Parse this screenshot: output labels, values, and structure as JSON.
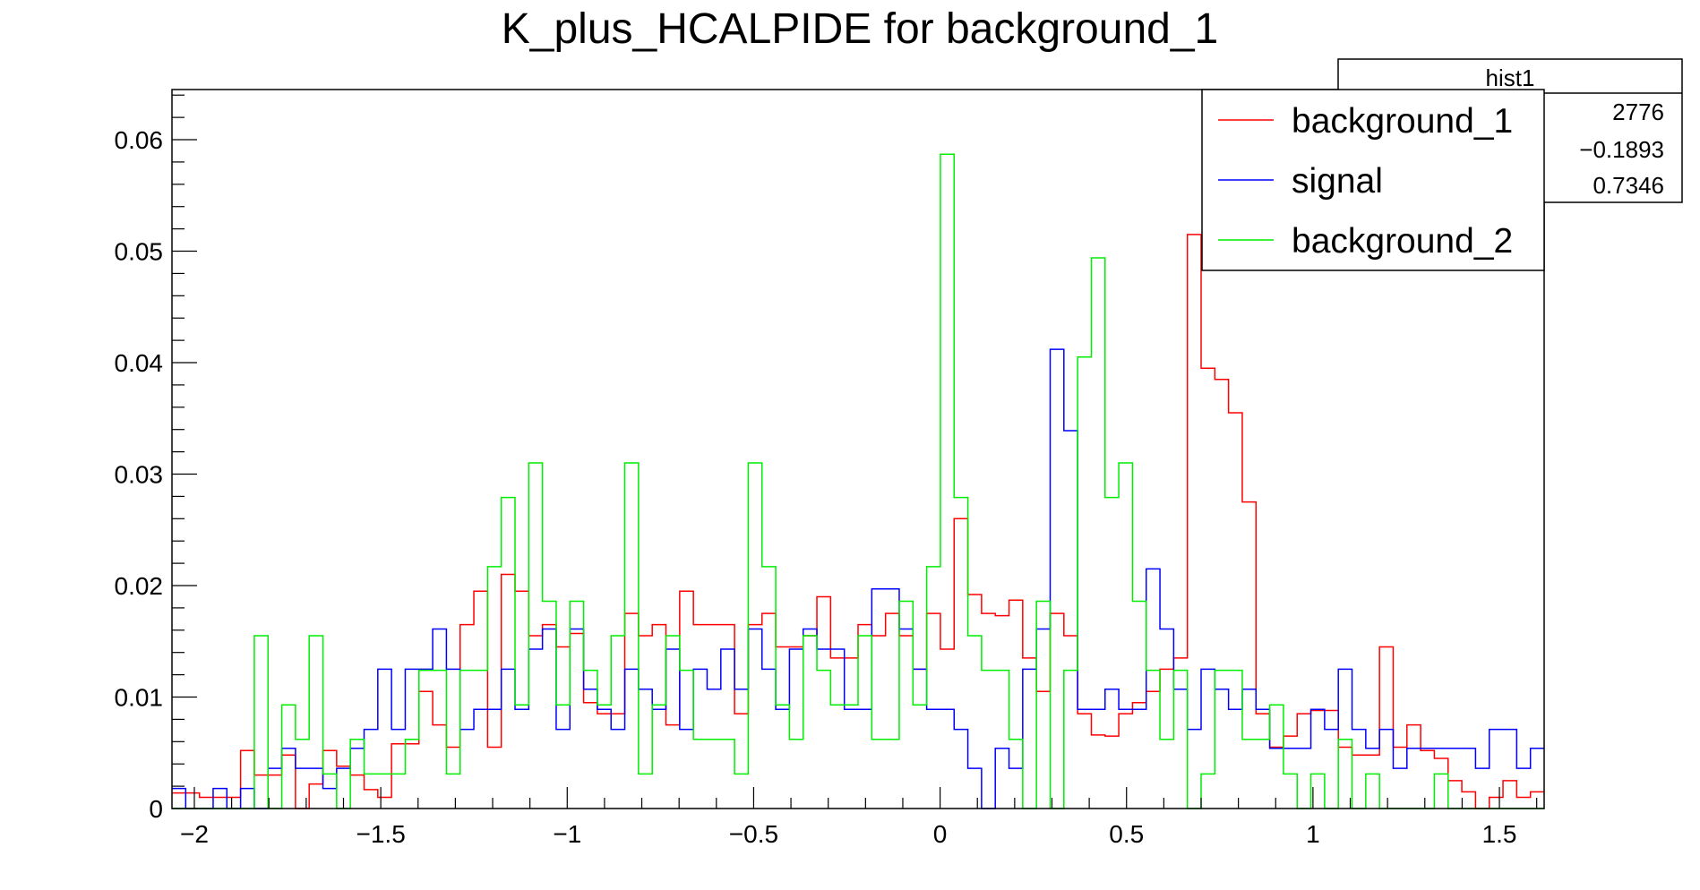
{
  "chart_data": {
    "type": "histogram-step",
    "title": "K_plus_HCALPIDE for background_1",
    "xlabel": "",
    "ylabel": "",
    "xlim": [
      -2.06,
      1.62
    ],
    "ylim": [
      0,
      0.0645
    ],
    "x_ticks": [
      -2,
      -1.5,
      -1,
      -0.5,
      0,
      0.5,
      1,
      1.5
    ],
    "x_tick_labels": [
      "−2",
      "−1.5",
      "−1",
      "−0.5",
      "0",
      "0.5",
      "1",
      "1.5"
    ],
    "y_ticks": [
      0,
      0.01,
      0.02,
      0.03,
      0.04,
      0.05,
      0.06
    ],
    "y_tick_labels": [
      "0",
      "0.01",
      "0.02",
      "0.03",
      "0.04",
      "0.05",
      "0.06"
    ],
    "bins": {
      "start": -2.06,
      "width": 0.0368,
      "count": 100
    },
    "series": [
      {
        "name": "background_1",
        "color": "#ff0000",
        "values": [
          0.0014,
          0.0014,
          0.001,
          0.001,
          0.001,
          0.0052,
          0.003,
          0.003,
          0.0048,
          0.0,
          0.0022,
          0.0052,
          0.0038,
          0.003,
          0.0017,
          0.001,
          0.0058,
          0.0058,
          0.0105,
          0.0075,
          0.0055,
          0.0165,
          0.0195,
          0.0055,
          0.021,
          0.0195,
          0.0155,
          0.0165,
          0.0145,
          0.0157,
          0.0095,
          0.0085,
          0.0085,
          0.0175,
          0.0155,
          0.0165,
          0.0075,
          0.0195,
          0.0165,
          0.0165,
          0.0165,
          0.0085,
          0.0165,
          0.0175,
          0.0145,
          0.0145,
          0.0155,
          0.019,
          0.0135,
          0.0135,
          0.0165,
          0.0155,
          0.0175,
          0.0155,
          0.0125,
          0.0175,
          0.0143,
          0.026,
          0.0192,
          0.0175,
          0.0173,
          0.0187,
          0.0135,
          0.0105,
          0.0175,
          0.0155,
          0.0085,
          0.0066,
          0.0065,
          0.0085,
          0.0095,
          0.0105,
          0.0125,
          0.0135,
          0.0515,
          0.0395,
          0.0385,
          0.0355,
          0.0275,
          0.0085,
          0.0055,
          0.0065,
          0.0085,
          0.0088,
          0.0088,
          0.0055,
          0.0048,
          0.0048,
          0.0145,
          0.0055,
          0.0075,
          0.0052,
          0.0045,
          0.0025,
          0.0015,
          0.0,
          0.001,
          0.0025,
          0.001,
          0.0015
        ]
      },
      {
        "name": "signal",
        "color": "#0000ff",
        "values": [
          0.0018,
          0.0,
          0.0,
          0.0018,
          0.0,
          0.0018,
          0.0,
          0.0036,
          0.0054,
          0.0036,
          0.0036,
          0.0018,
          0.0036,
          0.0054,
          0.0071,
          0.0125,
          0.0071,
          0.0125,
          0.0125,
          0.0161,
          0.0125,
          0.0071,
          0.0089,
          0.0089,
          0.0125,
          0.0089,
          0.0143,
          0.0161,
          0.0071,
          0.0161,
          0.0107,
          0.0089,
          0.0071,
          0.0125,
          0.0107,
          0.0089,
          0.0143,
          0.0071,
          0.0125,
          0.0107,
          0.0143,
          0.0107,
          0.0161,
          0.0125,
          0.0089,
          0.0143,
          0.0161,
          0.0143,
          0.0143,
          0.0089,
          0.0089,
          0.0197,
          0.0197,
          0.0161,
          0.0125,
          0.0089,
          0.0089,
          0.0071,
          0.0036,
          0.0,
          0.0054,
          0.0036,
          0.0125,
          0.0161,
          0.0412,
          0.0339,
          0.0089,
          0.0089,
          0.0107,
          0.0089,
          0.0089,
          0.0215,
          0.0161,
          0.0107,
          0.0071,
          0.0125,
          0.0107,
          0.0089,
          0.0107,
          0.0089,
          0.0054,
          0.0054,
          0.0054,
          0.0089,
          0.0071,
          0.0125,
          0.0071,
          0.0054,
          0.0071,
          0.0036,
          0.0054,
          0.0054,
          0.0054,
          0.0054,
          0.0054,
          0.0036,
          0.0071,
          0.0071,
          0.0036,
          0.0054
        ]
      },
      {
        "name": "background_2",
        "color": "#00ee00",
        "values": [
          0.0,
          0.0,
          0.0,
          0.0,
          0.0,
          0.0,
          0.0155,
          0.0,
          0.0093,
          0.0062,
          0.0155,
          0.0031,
          0.0,
          0.0062,
          0.0031,
          0.0031,
          0.0031,
          0.0062,
          0.0124,
          0.0124,
          0.0031,
          0.0124,
          0.0124,
          0.0217,
          0.0279,
          0.0093,
          0.031,
          0.0186,
          0.0093,
          0.0186,
          0.0124,
          0.0093,
          0.0155,
          0.031,
          0.0031,
          0.0093,
          0.0155,
          0.0124,
          0.0062,
          0.0062,
          0.0062,
          0.0031,
          0.031,
          0.0217,
          0.0093,
          0.0062,
          0.0155,
          0.0124,
          0.0093,
          0.0093,
          0.0155,
          0.0062,
          0.0062,
          0.0186,
          0.0093,
          0.0217,
          0.0587,
          0.0279,
          0.0155,
          0.0124,
          0.0124,
          0.0062,
          0.0,
          0.0186,
          0.0,
          0.0124,
          0.0405,
          0.0494,
          0.0279,
          0.031,
          0.0186,
          0.0124,
          0.0062,
          0.0124,
          0.0,
          0.0031,
          0.0124,
          0.0124,
          0.0062,
          0.0062,
          0.0093,
          0.0031,
          0.0,
          0.0031,
          0.0,
          0.0062,
          0.0,
          0.0031,
          0.0,
          0.0,
          0.0,
          0.0,
          0.0031,
          0.0,
          0.0,
          0.0,
          0.0,
          0.0,
          0.0,
          0.0
        ]
      }
    ],
    "legend": {
      "placement": "top-right",
      "entries": [
        "background_1",
        "signal",
        "background_2"
      ]
    },
    "stats_box": {
      "title": "hist1",
      "values": [
        "2776",
        "−0.1893",
        "0.7346"
      ]
    },
    "grid": false
  }
}
